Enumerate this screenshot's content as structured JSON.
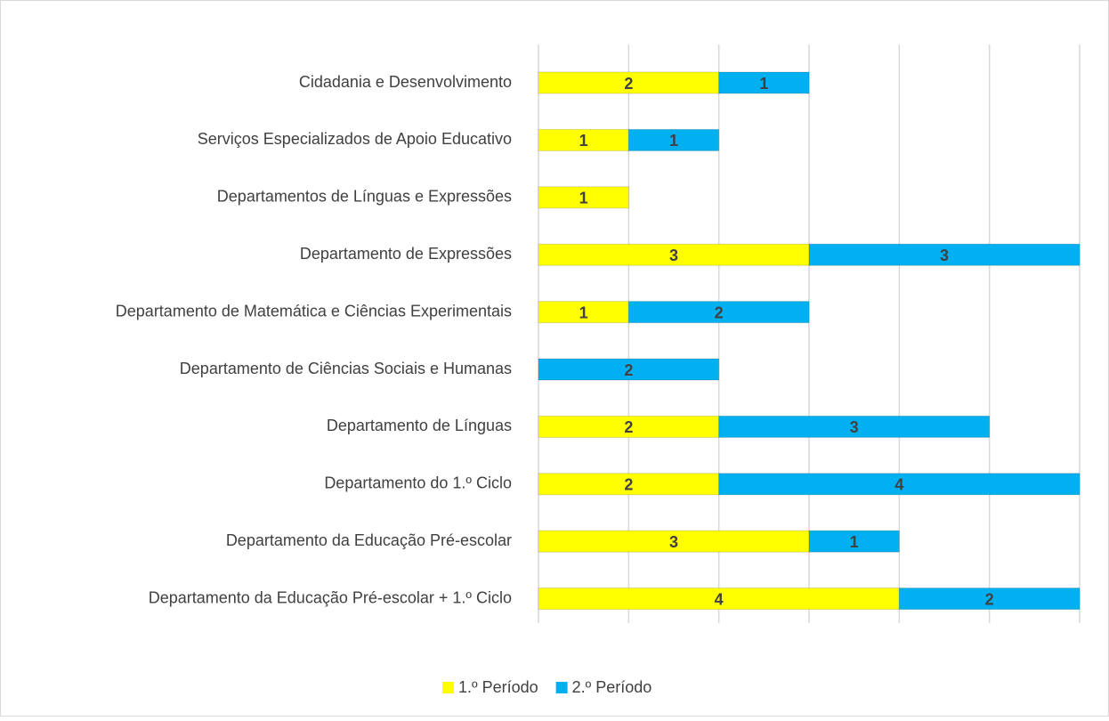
{
  "chart_data": {
    "type": "stacked_barh",
    "categories": [
      "Cidadania e Desenvolvimento",
      "Serviços Especializados de Apoio Educativo",
      "Departamentos de Línguas e Expressões",
      "Departamento de Expressões",
      "Departamento de Matemática e Ciências Experimentais",
      "Departamento de Ciências Sociais e Humanas ",
      "Departamento de Línguas",
      "Departamento do 1.º Ciclo ",
      "Departamento da Educação Pré-escolar",
      "Departamento da Educação Pré-escolar + 1.º Ciclo"
    ],
    "series": [
      {
        "name": "1.º Período",
        "color": "#ffff00",
        "values": [
          2,
          1,
          1,
          3,
          1,
          null,
          2,
          2,
          3,
          4
        ]
      },
      {
        "name": "2.º Período",
        "color": "#00b0f0",
        "values": [
          1,
          1,
          null,
          3,
          2,
          2,
          3,
          4,
          1,
          2
        ]
      }
    ],
    "xlim": [
      0,
      6
    ],
    "xticks": [
      0,
      1,
      2,
      3,
      4,
      5,
      6
    ],
    "grid": true,
    "legend": "bottom"
  }
}
